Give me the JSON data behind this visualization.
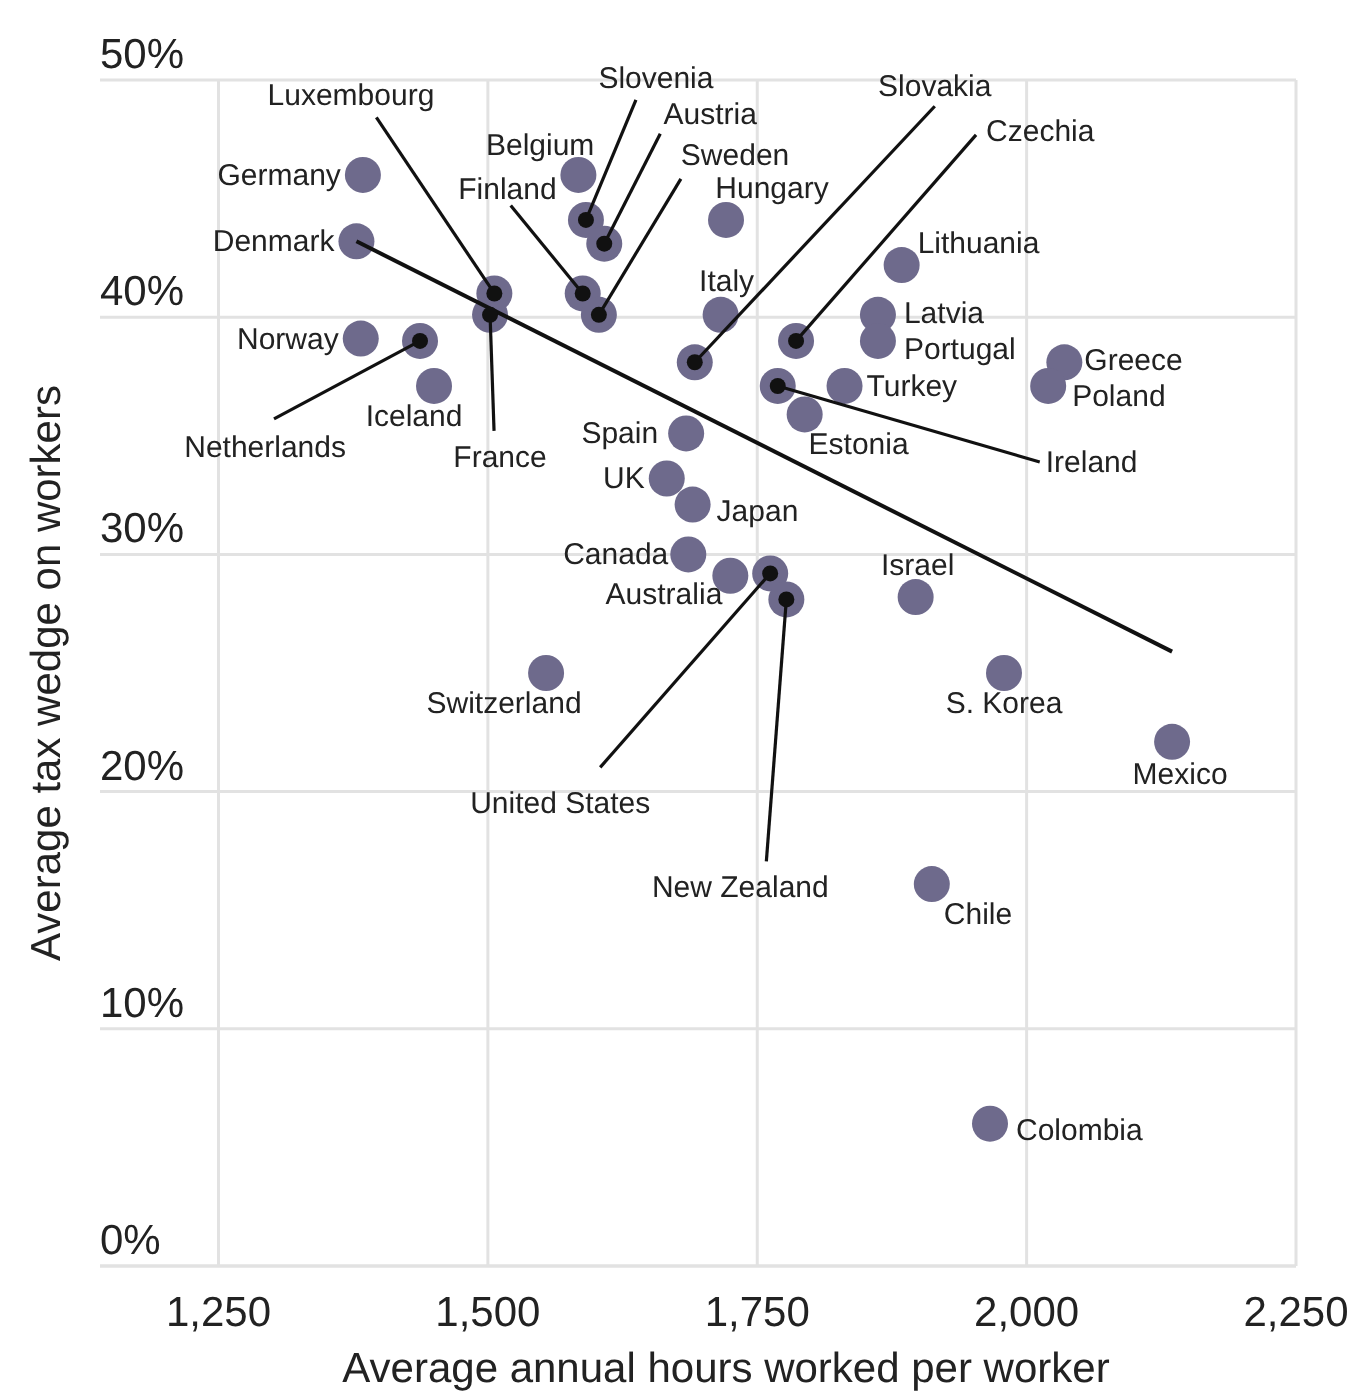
{
  "chart_data": {
    "type": "scatter",
    "xlabel": "Average annual hours worked per worker",
    "ylabel": "Average tax wedge on workers",
    "xlim": [
      1140,
      2250
    ],
    "xticks": [
      {
        "value": 1250,
        "label": "1,250"
      },
      {
        "value": 1500,
        "label": "1,500"
      },
      {
        "value": 1750,
        "label": "1,750"
      },
      {
        "value": 2000,
        "label": "2,000"
      },
      {
        "value": 2250,
        "label": "2,250"
      }
    ],
    "ylim": [
      0,
      50
    ],
    "yticks": [
      {
        "value": 0,
        "label": "0%"
      },
      {
        "value": 10,
        "label": "10%"
      },
      {
        "value": 20,
        "label": "20%"
      },
      {
        "value": 30,
        "label": "30%"
      },
      {
        "value": 40,
        "label": "40%"
      },
      {
        "value": 50,
        "label": "50%"
      }
    ],
    "grid": true,
    "marker": "circle",
    "series": [
      {
        "color": "#6e6a8c",
        "x": [
          1384,
          1378,
          1382,
          1437,
          1450,
          1506,
          1502,
          1584,
          1591,
          1608,
          1588,
          1603,
          1721,
          1716,
          1692,
          1786,
          1884,
          1862,
          1862,
          2035,
          2020,
          1831,
          1769,
          1794,
          1684,
          1666,
          1690,
          1686,
          1725,
          1762,
          1777,
          1897,
          1554,
          1979,
          2135,
          1912,
          1966
        ],
        "values": [
          46.0,
          43.2,
          39.1,
          39.0,
          37.1,
          41.0,
          40.1,
          46.0,
          44.1,
          43.1,
          41.0,
          40.1,
          44.1,
          40.1,
          38.1,
          39.0,
          42.2,
          40.1,
          39.0,
          38.1,
          37.1,
          37.1,
          37.1,
          35.9,
          35.1,
          33.2,
          32.1,
          30.0,
          29.1,
          29.2,
          28.1,
          28.2,
          25.0,
          25.0,
          22.1,
          16.1,
          6.0
        ]
      },
      {
        "type": "line",
        "color": "#111111",
        "line_style": "solid",
        "marker": "none",
        "x": [
          1378,
          2135
        ],
        "values": [
          43.2,
          25.9
        ]
      }
    ],
    "annotations": [
      {
        "text": "Germany",
        "x": 1384,
        "y": 46.0
      },
      {
        "text": "Denmark",
        "x": 1378,
        "y": 43.2
      },
      {
        "text": "Norway",
        "x": 1382,
        "y": 39.1
      },
      {
        "text": "Netherlands",
        "x": 1437,
        "y": 39.0
      },
      {
        "text": "Iceland",
        "x": 1450,
        "y": 37.1
      },
      {
        "text": "Luxembourg",
        "x": 1506,
        "y": 41.0
      },
      {
        "text": "France",
        "x": 1502,
        "y": 40.1
      },
      {
        "text": "Belgium",
        "x": 1584,
        "y": 46.0
      },
      {
        "text": "Slovenia",
        "x": 1591,
        "y": 44.1
      },
      {
        "text": "Austria",
        "x": 1608,
        "y": 43.1
      },
      {
        "text": "Finland",
        "x": 1588,
        "y": 41.0
      },
      {
        "text": "Sweden",
        "x": 1603,
        "y": 40.1
      },
      {
        "text": "Hungary",
        "x": 1721,
        "y": 44.1
      },
      {
        "text": "Italy",
        "x": 1716,
        "y": 40.1
      },
      {
        "text": "Slovakia",
        "x": 1692,
        "y": 38.1
      },
      {
        "text": "Czechia",
        "x": 1786,
        "y": 39.0
      },
      {
        "text": "Lithuania",
        "x": 1884,
        "y": 42.2
      },
      {
        "text": "Latvia",
        "x": 1862,
        "y": 40.1
      },
      {
        "text": "Portugal",
        "x": 1862,
        "y": 39.0
      },
      {
        "text": "Greece",
        "x": 2035,
        "y": 38.1
      },
      {
        "text": "Poland",
        "x": 2020,
        "y": 37.1
      },
      {
        "text": "Turkey",
        "x": 1831,
        "y": 37.1
      },
      {
        "text": "Ireland",
        "x": 1769,
        "y": 37.1
      },
      {
        "text": "Estonia",
        "x": 1794,
        "y": 35.9
      },
      {
        "text": "Spain",
        "x": 1684,
        "y": 35.1
      },
      {
        "text": "UK",
        "x": 1666,
        "y": 33.2
      },
      {
        "text": "Japan",
        "x": 1690,
        "y": 32.1
      },
      {
        "text": "Canada",
        "x": 1686,
        "y": 30.0
      },
      {
        "text": "Australia",
        "x": 1725,
        "y": 29.1
      },
      {
        "text": "United States",
        "x": 1762,
        "y": 29.2
      },
      {
        "text": "New Zealand",
        "x": 1777,
        "y": 28.1
      },
      {
        "text": "Israel",
        "x": 1897,
        "y": 28.2
      },
      {
        "text": "Switzerland",
        "x": 1554,
        "y": 25.0
      },
      {
        "text": "S. Korea",
        "x": 1979,
        "y": 25.0
      },
      {
        "text": "Mexico",
        "x": 2135,
        "y": 22.1
      },
      {
        "text": "Chile",
        "x": 1912,
        "y": 16.1
      },
      {
        "text": "Colombia",
        "x": 1966,
        "y": 6.0
      }
    ]
  }
}
